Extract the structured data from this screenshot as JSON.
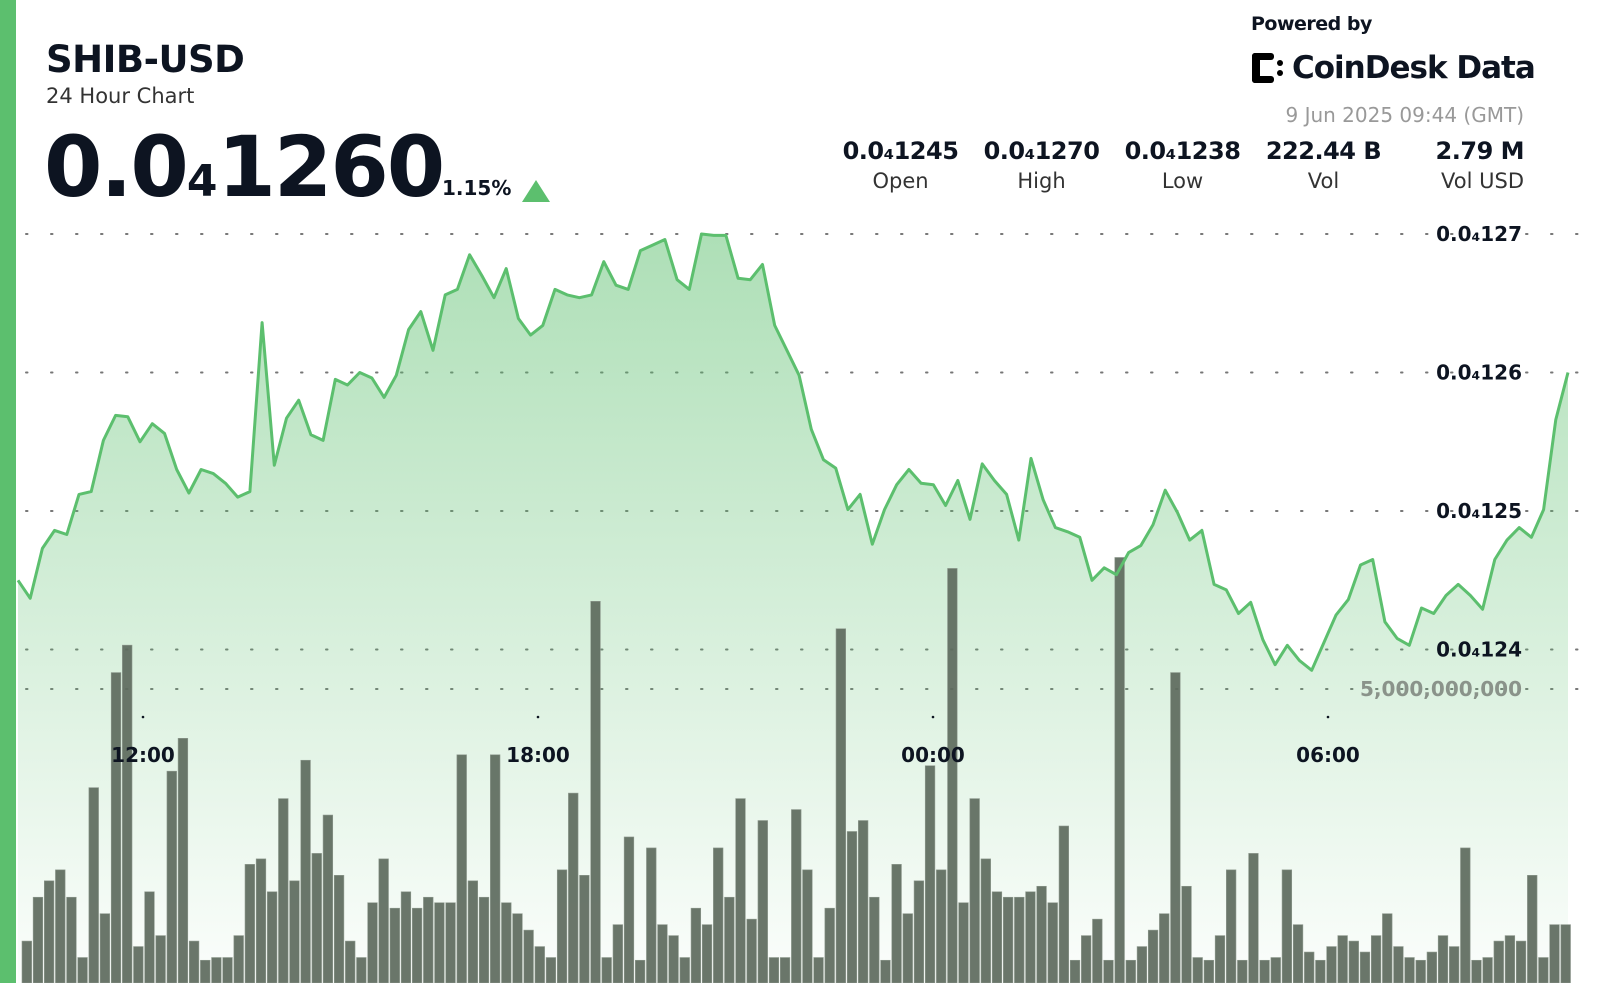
{
  "header": {
    "pair": "SHIB-USD",
    "subtitle": "24 Hour Chart",
    "price_prefix": "0.0",
    "price_zero_count": "4",
    "price_digits": "1260",
    "change_pct": "1.15%",
    "change_direction": "up",
    "up_color": "#5cbf6e"
  },
  "branding": {
    "powered_by": "Powered by",
    "logo_text": "CoinDesk Data",
    "timestamp": "9 Jun 2025 09:44 (GMT)"
  },
  "stats": [
    {
      "value": "0.0₄1245",
      "label": "Open"
    },
    {
      "value": "0.0₄1270",
      "label": "High"
    },
    {
      "value": "0.0₄1238",
      "label": "Low"
    },
    {
      "value": "222.44 B",
      "label": "Vol"
    },
    {
      "value": "2.79 M",
      "label": "Vol USD"
    }
  ],
  "chart_data": {
    "type": "area",
    "x_range": [
      "10:06",
      "09:41"
    ],
    "x_ticks": [
      "12:00",
      "18:00",
      "00:00",
      "06:00"
    ],
    "y_ticks": [
      {
        "value": 1.27e-05,
        "label": "0.0₄127"
      },
      {
        "value": 1.26e-05,
        "label": "0.0₄126"
      },
      {
        "value": 1.25e-05,
        "label": "0.0₄125"
      },
      {
        "value": 1.24e-05,
        "label": "0.0₄124"
      }
    ],
    "volume_tick": {
      "value": 5000000000.0,
      "label": "5,000,000,000"
    },
    "grid": "dotted horizontal",
    "line_color": "#5cbf6e",
    "volume_color": "#5d6a5d",
    "price": [
      1.245e-05,
      1.2437e-05,
      1.2473e-05,
      1.2486e-05,
      1.2483e-05,
      1.2512e-05,
      1.2514e-05,
      1.2551e-05,
      1.2569e-05,
      1.2568e-05,
      1.255e-05,
      1.2563e-05,
      1.2556e-05,
      1.253e-05,
      1.2513e-05,
      1.253e-05,
      1.2527e-05,
      1.252e-05,
      1.251e-05,
      1.2514e-05,
      1.2636e-05,
      1.2533e-05,
      1.2567e-05,
      1.258e-05,
      1.2555e-05,
      1.2551e-05,
      1.2595e-05,
      1.2591e-05,
      1.26e-05,
      1.2596e-05,
      1.2582e-05,
      1.2598e-05,
      1.2631e-05,
      1.2644e-05,
      1.2616e-05,
      1.2656e-05,
      1.266e-05,
      1.2685e-05,
      1.267e-05,
      1.2654e-05,
      1.2675e-05,
      1.2639e-05,
      1.2627e-05,
      1.2634e-05,
      1.266e-05,
      1.2656e-05,
      1.2654e-05,
      1.2656e-05,
      1.268e-05,
      1.2663e-05,
      1.266e-05,
      1.2688e-05,
      1.2692e-05,
      1.2696e-05,
      1.2667e-05,
      1.266e-05,
      1.27e-05,
      1.2699e-05,
      1.2699e-05,
      1.2668e-05,
      1.2667e-05,
      1.2678e-05,
      1.2634e-05,
      1.2616e-05,
      1.2598e-05,
      1.2559e-05,
      1.2537e-05,
      1.2531e-05,
      1.2501e-05,
      1.2512e-05,
      1.2476e-05,
      1.2501e-05,
      1.2519e-05,
      1.253e-05,
      1.252e-05,
      1.2519e-05,
      1.2504e-05,
      1.2522e-05,
      1.2494e-05,
      1.2534e-05,
      1.2522e-05,
      1.2512e-05,
      1.2479e-05,
      1.2538e-05,
      1.2508e-05,
      1.2488e-05,
      1.2485e-05,
      1.2481e-05,
      1.245e-05,
      1.2459e-05,
      1.2454e-05,
      1.247e-05,
      1.2475e-05,
      1.249e-05,
      1.2515e-05,
      1.2499e-05,
      1.2479e-05,
      1.2486e-05,
      1.2447e-05,
      1.2443e-05,
      1.2426e-05,
      1.2434e-05,
      1.2407e-05,
      1.2389e-05,
      1.2403e-05,
      1.2392e-05,
      1.2385e-05,
      1.2405e-05,
      1.2425e-05,
      1.2436e-05,
      1.2461e-05,
      1.2465e-05,
      1.242e-05,
      1.2408e-05,
      1.2403e-05,
      1.243e-05,
      1.2426e-05,
      1.2439e-05,
      1.2447e-05,
      1.2439e-05,
      1.2429e-05,
      1.2465e-05,
      1.2479e-05,
      1.2488e-05,
      1.2481e-05,
      1.2501e-05,
      1.2566e-05,
      1.26e-05
    ],
    "volume": [
      400000000.0,
      1200000000.0,
      1500000000.0,
      1700000000.0,
      1200000000.0,
      100000000.0,
      3200000000.0,
      900000000.0,
      5300000000.0,
      5800000000.0,
      300000000.0,
      1300000000.0,
      500000000.0,
      3500000000.0,
      4100000000.0,
      400000000.0,
      50000000.0,
      100000000.0,
      100000000.0,
      500000000.0,
      1800000000.0,
      1900000000.0,
      1300000000.0,
      3000000000.0,
      1500000000.0,
      3700000000.0,
      2000000000.0,
      2700000000.0,
      1600000000.0,
      400000000.0,
      100000000.0,
      1100000000.0,
      1900000000.0,
      1000000000.0,
      1300000000.0,
      1000000000.0,
      1200000000.0,
      1100000000.0,
      1100000000.0,
      3800000000.0,
      1500000000.0,
      1200000000.0,
      3800000000.0,
      1100000000.0,
      900000000.0,
      600000000.0,
      300000000.0,
      100000000.0,
      1700000000.0,
      3100000000.0,
      1600000000.0,
      6600000000.0,
      100000000.0,
      700000000.0,
      2300000000.0,
      50000000.0,
      2100000000.0,
      700000000.0,
      500000000.0,
      100000000.0,
      1000000000.0,
      700000000.0,
      2100000000.0,
      1200000000.0,
      3000000000.0,
      800000000.0,
      2600000000.0,
      100000000.0,
      100000000.0,
      2800000000.0,
      1700000000.0,
      100000000.0,
      1000000000.0,
      6100000000.0,
      2400000000.0,
      2600000000.0,
      1200000000.0,
      50000000.0,
      1800000000.0,
      900000000.0,
      1500000000.0,
      3600000000.0,
      1700000000.0,
      7200000000.0,
      1100000000.0,
      3000000000.0,
      1900000000.0,
      1300000000.0,
      1200000000.0,
      1200000000.0,
      1300000000.0,
      1400000000.0,
      1100000000.0,
      2500000000.0,
      50000000.0,
      500000000.0,
      800000000.0,
      50000000.0,
      7400000000.0,
      50000000.0,
      300000000.0,
      600000000.0,
      900000000.0,
      5300000000.0,
      1400000000.0,
      100000000.0,
      50000000.0,
      500000000.0,
      1700000000.0,
      50000000.0,
      2000000000.0,
      50000000.0,
      100000000.0,
      1700000000.0,
      700000000.0,
      200000000.0,
      50000000.0,
      300000000.0,
      500000000.0,
      400000000.0,
      200000000.0,
      500000000.0,
      900000000.0,
      300000000.0,
      100000000.0,
      50000000.0,
      200000000.0,
      500000000.0,
      300000000.0,
      2100000000.0,
      50000000.0,
      100000000.0,
      400000000.0,
      500000000.0,
      400000000.0,
      1600000000.0,
      100000000.0,
      700000000.0,
      700000000.0
    ]
  }
}
